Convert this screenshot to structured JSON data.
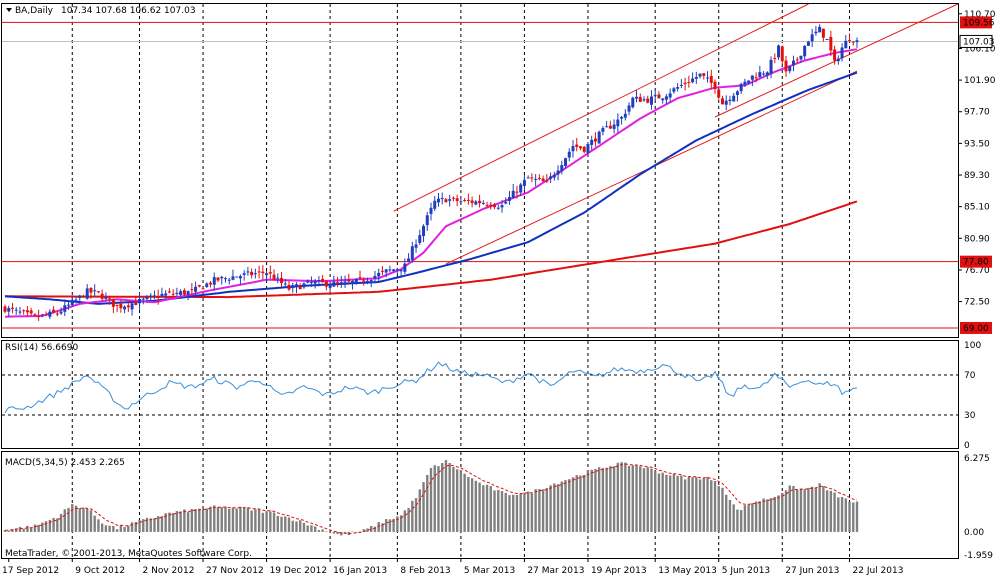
{
  "header": {
    "symbol": "BA,Daily",
    "ohlc": "107.34 107.68 106.62 107.03"
  },
  "colors": {
    "bull": "#1f3fbf",
    "bear": "#e01010",
    "ma_fast": "#e020e0",
    "ma_mid": "#1030c0",
    "ma_slow": "#e01010",
    "channel": "#e02020",
    "hline": "#e01010",
    "rsi": "#3a8fd8",
    "macd_hist": "#808080",
    "macd_signal": "#e01010"
  },
  "price_axis": {
    "ticks": [
      "110.70",
      "106.10",
      "101.90",
      "97.70",
      "93.50",
      "89.30",
      "85.10",
      "80.90",
      "76.70",
      "72.50"
    ],
    "tick_values": [
      110.7,
      106.1,
      101.9,
      97.7,
      93.5,
      89.3,
      85.1,
      80.9,
      76.7,
      72.5
    ],
    "ylim": [
      67.8,
      112.0
    ],
    "badges": [
      {
        "label": "109.56",
        "value": 109.56,
        "style": "red"
      },
      {
        "label": "107.03",
        "value": 107.03,
        "style": "white"
      },
      {
        "label": "77.80",
        "value": 77.8,
        "style": "red"
      },
      {
        "label": "69.00",
        "value": 69.0,
        "style": "red"
      }
    ],
    "hlines": [
      109.56,
      77.8,
      69.0
    ],
    "current": 107.03
  },
  "rsi_panel": {
    "label": "RSI(14) 56.6690",
    "ticks": [
      "100",
      "70",
      "30",
      "0"
    ],
    "tick_values": [
      100,
      70,
      30,
      0
    ],
    "levels": [
      70,
      30
    ]
  },
  "macd_panel": {
    "label": "MACD(5,34,5) 2.453 2.265",
    "ticks": [
      "6.275",
      "0.00",
      "-1.959"
    ],
    "tick_values": [
      6.275,
      0,
      -1.959
    ]
  },
  "time_axis": {
    "labels": [
      "17 Sep 2012",
      "9 Oct 2012",
      "2 Nov 2012",
      "27 Nov 2012",
      "19 Dec 2012",
      "16 Jan 2013",
      "8 Feb 2013",
      "5 Mar 2013",
      "27 Mar 2013",
      "19 Apr 2013",
      "13 May 2013",
      "5 Jun 2013",
      "27 Jun 2013",
      "22 Jul 2013"
    ]
  },
  "copyright": "MetaTrader, © 2001-2013, MetaQuotes Software Corp.",
  "chart_data": {
    "type": "candlestick",
    "title": "BA,Daily",
    "price_anchors": [
      [
        0,
        71.6
      ],
      [
        8,
        70.4
      ],
      [
        14,
        71.0
      ],
      [
        18,
        72.3
      ],
      [
        22,
        73.8
      ],
      [
        25,
        73.6
      ],
      [
        30,
        71.8
      ],
      [
        36,
        72.5
      ],
      [
        42,
        73.4
      ],
      [
        50,
        73.8
      ],
      [
        56,
        75.3
      ],
      [
        62,
        75.9
      ],
      [
        70,
        76.4
      ],
      [
        76,
        74.2
      ],
      [
        82,
        75.0
      ],
      [
        90,
        74.8
      ],
      [
        95,
        75.2
      ],
      [
        102,
        76.5
      ],
      [
        107,
        77.2
      ],
      [
        110,
        80.5
      ],
      [
        115,
        85.7
      ],
      [
        118,
        86.1
      ],
      [
        122,
        85.8
      ],
      [
        128,
        85.7
      ],
      [
        133,
        85.2
      ],
      [
        140,
        88.9
      ],
      [
        145,
        88.2
      ],
      [
        150,
        91.7
      ],
      [
        152,
        93.2
      ],
      [
        155,
        92.8
      ],
      [
        160,
        95.1
      ],
      [
        165,
        96.9
      ],
      [
        168,
        99.4
      ],
      [
        172,
        99.3
      ],
      [
        176,
        99.8
      ],
      [
        182,
        101.5
      ],
      [
        186,
        102.6
      ],
      [
        190,
        101.1
      ],
      [
        192,
        98.8
      ],
      [
        196,
        100.6
      ],
      [
        200,
        102.4
      ],
      [
        204,
        103.2
      ],
      [
        207,
        106.1
      ],
      [
        209,
        102.8
      ],
      [
        212,
        104.7
      ],
      [
        215,
        107.3
      ],
      [
        218,
        108.6
      ],
      [
        220,
        107.2
      ],
      [
        222,
        104.1
      ],
      [
        224,
        106.2
      ],
      [
        226,
        107.6
      ],
      [
        228,
        107.03
      ]
    ],
    "ma_fast_anchors": [
      [
        0,
        70.5
      ],
      [
        10,
        70.6
      ],
      [
        20,
        72.2
      ],
      [
        30,
        72.8
      ],
      [
        40,
        72.4
      ],
      [
        55,
        74.0
      ],
      [
        70,
        75.4
      ],
      [
        85,
        75.2
      ],
      [
        100,
        75.6
      ],
      [
        106,
        76.8
      ],
      [
        112,
        79.0
      ],
      [
        118,
        82.5
      ],
      [
        128,
        84.8
      ],
      [
        140,
        87.0
      ],
      [
        150,
        90.2
      ],
      [
        160,
        93.5
      ],
      [
        170,
        96.8
      ],
      [
        180,
        99.5
      ],
      [
        190,
        100.9
      ],
      [
        198,
        101.2
      ],
      [
        206,
        103.0
      ],
      [
        214,
        104.5
      ],
      [
        222,
        105.5
      ],
      [
        228,
        106.0
      ]
    ],
    "ma_mid_anchors": [
      [
        0,
        73.2
      ],
      [
        12,
        72.8
      ],
      [
        25,
        72.2
      ],
      [
        40,
        72.6
      ],
      [
        60,
        73.8
      ],
      [
        80,
        74.6
      ],
      [
        100,
        75.1
      ],
      [
        110,
        76.3
      ],
      [
        125,
        78.2
      ],
      [
        140,
        80.4
      ],
      [
        155,
        84.3
      ],
      [
        170,
        89.4
      ],
      [
        185,
        93.9
      ],
      [
        200,
        97.4
      ],
      [
        215,
        100.6
      ],
      [
        228,
        102.9
      ]
    ],
    "ma_slow_anchors": [
      [
        0,
        73.2
      ],
      [
        60,
        73.1
      ],
      [
        100,
        73.8
      ],
      [
        130,
        75.4
      ],
      [
        160,
        77.8
      ],
      [
        190,
        80.2
      ],
      [
        210,
        82.8
      ],
      [
        228,
        85.8
      ]
    ],
    "channel_upper": [
      [
        104,
        84.5
      ],
      [
        215,
        112.0
      ]
    ],
    "channel_lower": [
      [
        118,
        77.5
      ],
      [
        228,
        103.1
      ]
    ],
    "channel_extension": [
      [
        190,
        97.0
      ],
      [
        255,
        112.0
      ]
    ],
    "rsi_anchors": [
      [
        0,
        35
      ],
      [
        6,
        38
      ],
      [
        14,
        52
      ],
      [
        22,
        70
      ],
      [
        28,
        50
      ],
      [
        32,
        36
      ],
      [
        38,
        50
      ],
      [
        44,
        62
      ],
      [
        50,
        58
      ],
      [
        56,
        66
      ],
      [
        62,
        58
      ],
      [
        68,
        66
      ],
      [
        74,
        48
      ],
      [
        80,
        58
      ],
      [
        86,
        50
      ],
      [
        92,
        58
      ],
      [
        98,
        52
      ],
      [
        104,
        60
      ],
      [
        110,
        65
      ],
      [
        116,
        82
      ],
      [
        122,
        72
      ],
      [
        128,
        70
      ],
      [
        134,
        62
      ],
      [
        140,
        72
      ],
      [
        146,
        58
      ],
      [
        152,
        74
      ],
      [
        158,
        68
      ],
      [
        164,
        76
      ],
      [
        170,
        74
      ],
      [
        176,
        80
      ],
      [
        182,
        70
      ],
      [
        186,
        62
      ],
      [
        190,
        72
      ],
      [
        194,
        48
      ],
      [
        198,
        60
      ],
      [
        202,
        56
      ],
      [
        206,
        70
      ],
      [
        210,
        58
      ],
      [
        214,
        66
      ],
      [
        218,
        60
      ],
      [
        222,
        62
      ],
      [
        224,
        52
      ],
      [
        228,
        57
      ]
    ],
    "macd_anchors": [
      [
        0,
        0.2
      ],
      [
        8,
        0.5
      ],
      [
        14,
        1.3
      ],
      [
        18,
        2.3
      ],
      [
        22,
        2.0
      ],
      [
        26,
        0.8
      ],
      [
        30,
        0.3
      ],
      [
        36,
        0.9
      ],
      [
        44,
        1.6
      ],
      [
        56,
        2.1
      ],
      [
        64,
        2.0
      ],
      [
        72,
        1.6
      ],
      [
        78,
        1.0
      ],
      [
        84,
        0.3
      ],
      [
        90,
        -0.3
      ],
      [
        96,
        0.1
      ],
      [
        102,
        1.0
      ],
      [
        106,
        1.4
      ],
      [
        110,
        2.9
      ],
      [
        114,
        5.4
      ],
      [
        118,
        6.0
      ],
      [
        126,
        4.3
      ],
      [
        134,
        3.2
      ],
      [
        140,
        3.3
      ],
      [
        148,
        4.2
      ],
      [
        156,
        5.1
      ],
      [
        164,
        5.8
      ],
      [
        170,
        5.6
      ],
      [
        176,
        5.0
      ],
      [
        182,
        4.6
      ],
      [
        188,
        4.6
      ],
      [
        192,
        3.8
      ],
      [
        196,
        1.8
      ],
      [
        200,
        2.5
      ],
      [
        206,
        3.0
      ],
      [
        210,
        3.8
      ],
      [
        214,
        3.6
      ],
      [
        218,
        4.0
      ],
      [
        222,
        3.2
      ],
      [
        226,
        2.6
      ],
      [
        228,
        2.5
      ]
    ],
    "bars": 229
  }
}
